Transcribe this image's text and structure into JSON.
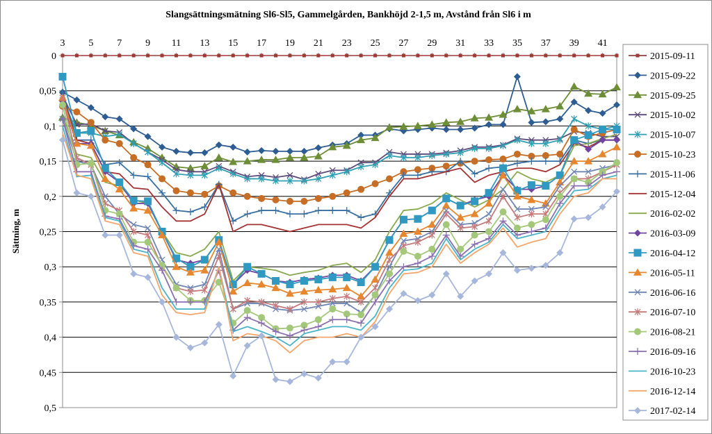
{
  "chart_data": {
    "type": "line",
    "title": "Slangsättningsmätning  Sl6-Sl5, Gammelgården,  Bankhöjd 2-1,5 m,  Avstånd från Sl6 i m",
    "xlabel": "",
    "ylabel": "Sättning, m",
    "x": [
      3,
      4,
      5,
      6,
      7,
      8,
      9,
      10,
      11,
      12,
      13,
      14,
      15,
      16,
      17,
      18,
      19,
      20,
      21,
      22,
      23,
      24,
      25,
      26,
      27,
      28,
      29,
      30,
      31,
      32,
      33,
      34,
      35,
      36,
      37,
      38,
      39,
      40,
      41,
      42
    ],
    "x_ticks": [
      3,
      5,
      7,
      9,
      11,
      13,
      15,
      17,
      19,
      21,
      23,
      25,
      27,
      29,
      31,
      33,
      35,
      37,
      39,
      41
    ],
    "xlim": [
      3,
      42
    ],
    "ylim": [
      0,
      0.5
    ],
    "y_inverted": true,
    "y_ticks": [
      "0",
      "0,05",
      "0,1",
      "0,15",
      "0,2",
      "0,25",
      "0,3",
      "0,35",
      "0,4",
      "0,45",
      "0,5"
    ],
    "grid": "horizontal",
    "legend_position": "right",
    "series": [
      {
        "name": "2015-09-11",
        "color": "#9e3a36",
        "marker": "square-small",
        "values": [
          0,
          0,
          0,
          0,
          0,
          0,
          0,
          0,
          0,
          0,
          0,
          0,
          0,
          0,
          0,
          0,
          0,
          0,
          0,
          0,
          0,
          0,
          0,
          0,
          0,
          0,
          0,
          0,
          0,
          0,
          0,
          0,
          0,
          0,
          0,
          0,
          0,
          0,
          0,
          0
        ]
      },
      {
        "name": "2015-09-22",
        "color": "#2d5d92",
        "marker": "diamond",
        "values": [
          0.052,
          0.063,
          0.074,
          0.087,
          0.09,
          0.104,
          0.115,
          0.13,
          0.136,
          0.138,
          0.138,
          0.127,
          0.13,
          0.137,
          0.135,
          0.136,
          0.136,
          0.136,
          0.131,
          0.127,
          0.125,
          0.113,
          0.113,
          0.104,
          0.107,
          0.105,
          0.103,
          0.105,
          0.105,
          0.103,
          0.098,
          0.098,
          0.03,
          0.095,
          0.094,
          0.09,
          0.066,
          0.078,
          0.082,
          0.07
        ]
      },
      {
        "name": "2015-09-25",
        "color": "#6d8d36",
        "marker": "triangle",
        "values": [
          0.088,
          0.095,
          0.099,
          0.107,
          0.113,
          0.123,
          0.132,
          0.145,
          0.158,
          0.16,
          0.157,
          0.145,
          0.151,
          0.15,
          0.148,
          0.148,
          0.145,
          0.145,
          0.143,
          0.13,
          0.128,
          0.12,
          0.117,
          0.102,
          0.101,
          0.1,
          0.098,
          0.095,
          0.094,
          0.089,
          0.088,
          0.084,
          0.076,
          0.079,
          0.076,
          0.072,
          0.044,
          0.054,
          0.055,
          0.045
        ]
      },
      {
        "name": "2015-10-02",
        "color": "#5d4a7b",
        "marker": "x",
        "values": [
          0.057,
          0.098,
          0.097,
          0.107,
          0.109,
          0.125,
          0.137,
          0.148,
          0.162,
          0.165,
          0.165,
          0.157,
          0.165,
          0.172,
          0.17,
          0.173,
          0.17,
          0.176,
          0.168,
          0.163,
          0.163,
          0.152,
          0.152,
          0.137,
          0.14,
          0.14,
          0.14,
          0.138,
          0.135,
          0.13,
          0.13,
          0.127,
          0.118,
          0.12,
          0.12,
          0.118,
          0.108,
          0.11,
          0.115,
          0.115
        ]
      },
      {
        "name": "2015-10-07",
        "color": "#2f9fb3",
        "marker": "asterisk",
        "values": [
          0.06,
          0.11,
          0.11,
          0.115,
          0.112,
          0.125,
          0.137,
          0.152,
          0.168,
          0.17,
          0.17,
          0.16,
          0.168,
          0.175,
          0.175,
          0.178,
          0.178,
          0.178,
          0.175,
          0.17,
          0.165,
          0.158,
          0.155,
          0.142,
          0.145,
          0.145,
          0.142,
          0.14,
          0.138,
          0.132,
          0.132,
          0.128,
          0.12,
          0.125,
          0.125,
          0.12,
          0.09,
          0.1,
          0.105,
          0.1
        ]
      },
      {
        "name": "2015-10-23",
        "color": "#c66d26",
        "marker": "circle",
        "values": [
          0.072,
          0.08,
          0.095,
          0.12,
          0.125,
          0.145,
          0.155,
          0.175,
          0.192,
          0.195,
          0.197,
          0.185,
          0.195,
          0.2,
          0.203,
          0.205,
          0.207,
          0.207,
          0.203,
          0.2,
          0.195,
          0.19,
          0.182,
          0.175,
          0.165,
          0.162,
          0.16,
          0.157,
          0.153,
          0.15,
          0.148,
          0.147,
          0.14,
          0.143,
          0.142,
          0.14,
          0.105,
          0.115,
          0.11,
          0.105
        ]
      },
      {
        "name": "2015-11-06",
        "color": "#386fa1",
        "marker": "plus",
        "values": [
          0.052,
          0.12,
          0.12,
          0.155,
          0.152,
          0.17,
          0.172,
          0.195,
          0.22,
          0.222,
          0.215,
          0.183,
          0.235,
          0.225,
          0.22,
          0.22,
          0.225,
          0.225,
          0.22,
          0.22,
          0.22,
          0.23,
          0.225,
          0.195,
          0.17,
          0.17,
          0.165,
          0.165,
          0.15,
          0.168,
          0.16,
          0.158,
          0.153,
          0.15,
          0.15,
          0.15,
          0.12,
          0.125,
          0.12,
          0.12
        ]
      },
      {
        "name": "2015-12-04",
        "color": "#a53232",
        "marker": "none",
        "values": [
          0.06,
          0.12,
          0.125,
          0.165,
          0.168,
          0.188,
          0.19,
          0.215,
          0.235,
          0.235,
          0.225,
          0.183,
          0.25,
          0.24,
          0.24,
          0.245,
          0.25,
          0.245,
          0.24,
          0.24,
          0.24,
          0.245,
          0.23,
          0.2,
          0.175,
          0.175,
          0.17,
          0.165,
          0.16,
          0.18,
          0.17,
          0.165,
          0.16,
          0.16,
          0.165,
          0.155,
          0.125,
          0.13,
          0.12,
          0.12
        ]
      },
      {
        "name": "2016-02-02",
        "color": "#88a94e",
        "marker": "none",
        "values": [
          0.085,
          0.14,
          0.145,
          0.18,
          0.185,
          0.205,
          0.21,
          0.25,
          0.28,
          0.285,
          0.275,
          0.25,
          0.32,
          0.3,
          0.302,
          0.305,
          0.312,
          0.308,
          0.305,
          0.298,
          0.295,
          0.308,
          0.29,
          0.25,
          0.22,
          0.218,
          0.21,
          0.195,
          0.205,
          0.215,
          0.205,
          0.19,
          0.165,
          0.175,
          0.18,
          0.17,
          0.128,
          0.125,
          0.118,
          0.112
        ]
      },
      {
        "name": "2016-03-09",
        "color": "#7044a0",
        "marker": "diamond",
        "values": [
          0.065,
          0.125,
          0.125,
          0.165,
          0.18,
          0.21,
          0.21,
          0.25,
          0.29,
          0.295,
          0.29,
          0.262,
          0.325,
          0.305,
          0.31,
          0.32,
          0.322,
          0.318,
          0.316,
          0.312,
          0.312,
          0.32,
          0.3,
          0.262,
          0.233,
          0.232,
          0.22,
          0.203,
          0.213,
          0.205,
          0.2,
          0.17,
          0.19,
          0.19,
          0.185,
          0.17,
          0.12,
          0.133,
          0.12,
          0.12
        ]
      },
      {
        "name": "2016-04-12",
        "color": "#3099c2",
        "marker": "square",
        "values": [
          0.03,
          0.11,
          0.107,
          0.16,
          0.18,
          0.206,
          0.207,
          0.25,
          0.288,
          0.3,
          0.29,
          0.262,
          0.325,
          0.3,
          0.31,
          0.32,
          0.325,
          0.32,
          0.318,
          0.315,
          0.315,
          0.322,
          0.3,
          0.262,
          0.233,
          0.232,
          0.22,
          0.203,
          0.213,
          0.207,
          0.195,
          0.16,
          0.192,
          0.184,
          0.185,
          0.17,
          0.12,
          0.113,
          0.105,
          0.105
        ]
      },
      {
        "name": "2016-05-11",
        "color": "#e6862e",
        "marker": "triangle",
        "values": [
          0.06,
          0.125,
          0.128,
          0.175,
          0.19,
          0.217,
          0.22,
          0.255,
          0.3,
          0.308,
          0.305,
          0.265,
          0.335,
          0.323,
          0.325,
          0.33,
          0.338,
          0.335,
          0.333,
          0.332,
          0.33,
          0.342,
          0.318,
          0.28,
          0.253,
          0.25,
          0.24,
          0.213,
          0.23,
          0.225,
          0.21,
          0.17,
          0.2,
          0.205,
          0.21,
          0.18,
          0.15,
          0.15,
          0.14,
          0.13
        ]
      },
      {
        "name": "2016-06-16",
        "color": "#6f86b4",
        "marker": "x",
        "values": [
          0.09,
          0.15,
          0.155,
          0.2,
          0.225,
          0.24,
          0.245,
          0.29,
          0.325,
          0.33,
          0.325,
          0.275,
          0.36,
          0.352,
          0.352,
          0.36,
          0.362,
          0.36,
          0.356,
          0.352,
          0.352,
          0.365,
          0.34,
          0.3,
          0.263,
          0.26,
          0.25,
          0.22,
          0.24,
          0.238,
          0.225,
          0.19,
          0.218,
          0.218,
          0.215,
          0.185,
          0.165,
          0.165,
          0.16,
          0.155
        ]
      },
      {
        "name": "2016-07-10",
        "color": "#c47a7a",
        "marker": "asterisk",
        "values": [
          0.06,
          0.145,
          0.155,
          0.21,
          0.22,
          0.25,
          0.255,
          0.3,
          0.33,
          0.335,
          0.333,
          0.285,
          0.36,
          0.348,
          0.35,
          0.355,
          0.36,
          0.35,
          0.35,
          0.345,
          0.342,
          0.35,
          0.33,
          0.29,
          0.27,
          0.265,
          0.255,
          0.225,
          0.245,
          0.243,
          0.235,
          0.2,
          0.23,
          0.225,
          0.225,
          0.195,
          0.175,
          0.175,
          0.165,
          0.155
        ]
      },
      {
        "name": "2016-08-21",
        "color": "#a4c87a",
        "marker": "circle",
        "values": [
          0.07,
          0.155,
          0.153,
          0.22,
          0.225,
          0.265,
          0.265,
          0.298,
          0.33,
          0.348,
          0.348,
          0.322,
          0.38,
          0.362,
          0.372,
          0.388,
          0.387,
          0.383,
          0.375,
          0.36,
          0.367,
          0.368,
          0.34,
          0.31,
          0.278,
          0.285,
          0.275,
          0.24,
          0.275,
          0.255,
          0.25,
          0.222,
          0.245,
          0.24,
          0.233,
          0.2,
          0.175,
          0.18,
          0.165,
          0.152
        ]
      },
      {
        "name": "2016-09-16",
        "color": "#8b6faf",
        "marker": "plus",
        "values": [
          0.09,
          0.165,
          0.165,
          0.228,
          0.232,
          0.27,
          0.275,
          0.305,
          0.35,
          0.35,
          0.35,
          0.305,
          0.39,
          0.372,
          0.38,
          0.392,
          0.398,
          0.39,
          0.385,
          0.375,
          0.375,
          0.38,
          0.35,
          0.32,
          0.3,
          0.295,
          0.285,
          0.255,
          0.285,
          0.268,
          0.26,
          0.235,
          0.255,
          0.25,
          0.245,
          0.21,
          0.185,
          0.185,
          0.17,
          0.165
        ]
      },
      {
        "name": "2016-10-23",
        "color": "#4bb3c7",
        "marker": "none",
        "values": [
          0.1,
          0.172,
          0.17,
          0.23,
          0.235,
          0.275,
          0.28,
          0.33,
          0.36,
          0.36,
          0.36,
          0.3,
          0.392,
          0.385,
          0.392,
          0.4,
          0.412,
          0.395,
          0.39,
          0.385,
          0.385,
          0.39,
          0.37,
          0.33,
          0.305,
          0.303,
          0.295,
          0.26,
          0.29,
          0.275,
          0.265,
          0.24,
          0.26,
          0.255,
          0.25,
          0.218,
          0.192,
          0.19,
          0.175,
          0.17
        ]
      },
      {
        "name": "2016-12-14",
        "color": "#f5a56a",
        "marker": "none",
        "values": [
          0.11,
          0.17,
          0.175,
          0.235,
          0.24,
          0.28,
          0.285,
          0.34,
          0.365,
          0.368,
          0.365,
          0.3,
          0.405,
          0.395,
          0.398,
          0.405,
          0.422,
          0.405,
          0.4,
          0.4,
          0.395,
          0.4,
          0.378,
          0.338,
          0.31,
          0.308,
          0.3,
          0.268,
          0.295,
          0.28,
          0.268,
          0.245,
          0.272,
          0.265,
          0.26,
          0.225,
          0.2,
          0.195,
          0.175,
          0.175
        ]
      },
      {
        "name": "2017-02-14",
        "color": "#a7b7dc",
        "marker": "diamond",
        "values": [
          0.12,
          0.195,
          0.2,
          0.255,
          0.255,
          0.31,
          0.315,
          0.35,
          0.4,
          0.415,
          0.408,
          0.382,
          0.455,
          0.412,
          0.398,
          0.46,
          0.463,
          0.452,
          0.458,
          0.435,
          0.435,
          0.4,
          0.385,
          0.36,
          0.338,
          0.348,
          0.34,
          0.31,
          0.342,
          0.32,
          0.31,
          0.28,
          0.305,
          0.302,
          0.298,
          0.28,
          0.232,
          0.23,
          0.215,
          0.193
        ]
      }
    ]
  }
}
